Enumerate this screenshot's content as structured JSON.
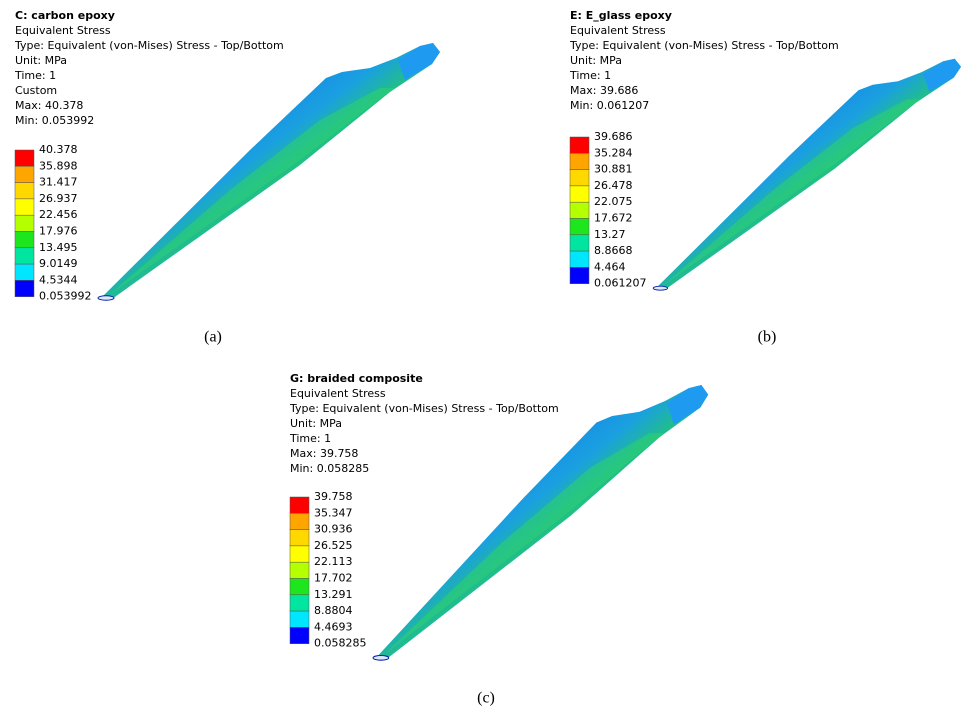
{
  "panels": [
    {
      "title": "C: carbon epoxy",
      "lines": [
        "Equivalent Stress",
        "Type: Equivalent (von-Mises) Stress - Top/Bottom",
        "Unit: MPa",
        "Time: 1",
        "Custom",
        "Max: 40.378",
        "Min: 0.053992"
      ],
      "legend": [
        "40.378",
        "35.898",
        "31.417",
        "26.937",
        "22.456",
        "17.976",
        "13.495",
        "9.0149",
        "4.5344",
        "0.053992"
      ],
      "caption": "(a)"
    },
    {
      "title": "E: E_glass epoxy",
      "lines": [
        "Equivalent Stress",
        "Type: Equivalent (von-Mises) Stress - Top/Bottom",
        "Unit: MPa",
        "Time: 1",
        "Max: 39.686",
        "Min: 0.061207"
      ],
      "legend": [
        "39.686",
        "35.284",
        "30.881",
        "26.478",
        "22.075",
        "17.672",
        "13.27",
        "8.8668",
        "4.464",
        "0.061207"
      ],
      "caption": "(b)"
    },
    {
      "title": "G: braided composite",
      "lines": [
        "Equivalent Stress",
        "Type: Equivalent (von-Mises) Stress - Top/Bottom",
        "Unit: MPa",
        "Time: 1",
        "Max: 39.758",
        "Min: 0.058285"
      ],
      "legend": [
        "39.758",
        "35.347",
        "30.936",
        "26.525",
        "22.113",
        "17.702",
        "13.291",
        "8.8804",
        "4.4693",
        "0.058285"
      ],
      "caption": "(c)"
    }
  ]
}
